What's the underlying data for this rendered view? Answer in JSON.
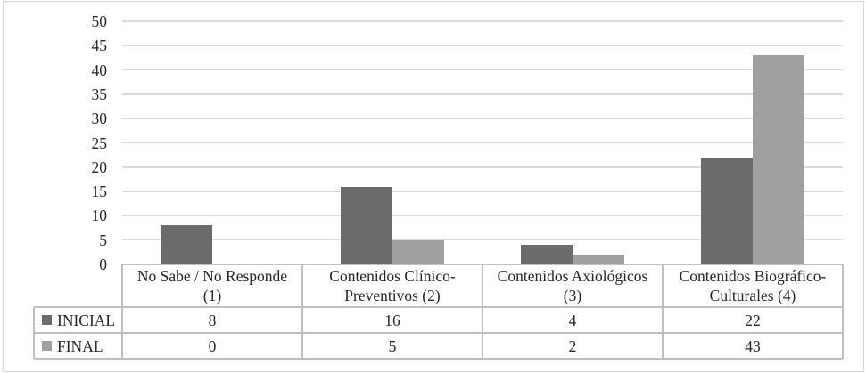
{
  "chart_data": {
    "type": "bar",
    "title": "",
    "xlabel": "",
    "ylabel": "",
    "grid": true,
    "legend_position": "data-table-left",
    "categories": [
      "No Sabe / No Responde (1)",
      "Contenidos Clínico-Preventivos (2)",
      "Contenidos Axiológicos (3)",
      "Contenidos Biográfico-Culturales (4)"
    ],
    "category_label_lines": [
      [
        "No Sabe / No Responde",
        "(1)"
      ],
      [
        "Contenidos Clínico-",
        "Preventivos (2)"
      ],
      [
        "Contenidos Axiológicos",
        "(3)"
      ],
      [
        "Contenidos Biográfico-",
        "Culturales (4)"
      ]
    ],
    "series": [
      {
        "name": "INICIAL",
        "values": [
          8,
          16,
          4,
          22
        ],
        "color": "#6b6b6b"
      },
      {
        "name": "FINAL",
        "values": [
          0,
          5,
          2,
          43
        ],
        "color": "#a0a0a0"
      }
    ],
    "y_axis": {
      "min": 0,
      "max": 50,
      "step": 5,
      "tick_labels": [
        "0",
        "5",
        "10",
        "15",
        "20",
        "25",
        "30",
        "35",
        "40",
        "45",
        "50"
      ]
    }
  },
  "colors": {
    "bar_inicial": "#6b6b6b",
    "bar_final": "#a0a0a0",
    "gridline": "#d9d9d9",
    "table_border": "#bfbfbf",
    "figure_border": "#d6d6d6",
    "text": "#262626"
  }
}
